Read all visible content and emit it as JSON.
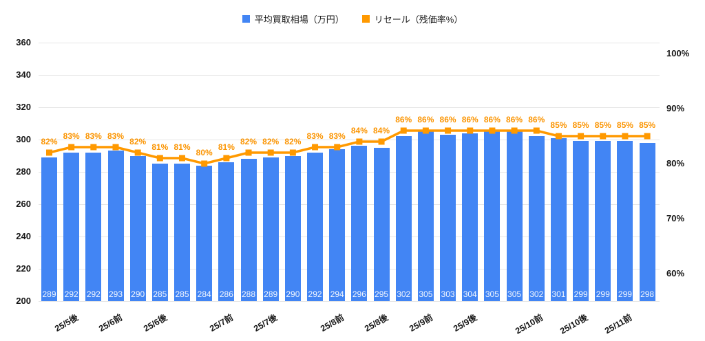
{
  "legend": {
    "items": [
      {
        "label": "平均買取相場（万円）",
        "color": "#4285F4"
      },
      {
        "label": "リセール（残価率%）",
        "color": "#FF9900"
      }
    ]
  },
  "chart_data": {
    "type": "combo-bar-line",
    "title": "",
    "categories_note": "28 half-month periods; only some ticks labeled",
    "x_tick_labels": [
      {
        "index": 1,
        "label": "25/5後"
      },
      {
        "index": 3,
        "label": "25/6前"
      },
      {
        "index": 5,
        "label": "25/6後"
      },
      {
        "index": 8,
        "label": "25/7前"
      },
      {
        "index": 10,
        "label": "25/7後"
      },
      {
        "index": 13,
        "label": "25/8前"
      },
      {
        "index": 15,
        "label": "25/8後"
      },
      {
        "index": 17,
        "label": "25/9前"
      },
      {
        "index": 19,
        "label": "25/9後"
      },
      {
        "index": 22,
        "label": "25/10前"
      },
      {
        "index": 24,
        "label": "25/10後"
      },
      {
        "index": 26,
        "label": "25/11前"
      }
    ],
    "series": [
      {
        "name": "平均買取相場（万円）",
        "type": "bar",
        "axis": "left",
        "color": "#4285F4",
        "value_label_color": "#ffffff",
        "values": [
          289,
          292,
          292,
          293,
          290,
          285,
          285,
          284,
          286,
          288,
          289,
          290,
          292,
          294,
          296,
          295,
          302,
          305,
          303,
          304,
          305,
          305,
          302,
          301,
          299,
          299,
          299,
          298
        ]
      },
      {
        "name": "リセール（残価率%）",
        "type": "line",
        "axis": "right",
        "color": "#FF9900",
        "point_shape": "square",
        "annotation_suffix": "%",
        "values": [
          82,
          83,
          83,
          83,
          82,
          81,
          81,
          80,
          81,
          82,
          82,
          82,
          83,
          83,
          84,
          84,
          86,
          86,
          86,
          86,
          86,
          86,
          86,
          85,
          85,
          85,
          85,
          85
        ]
      }
    ],
    "left_axis": {
      "min": 200,
      "max": 360,
      "tick_step": 20,
      "ticks": [
        360,
        340,
        320,
        300,
        280,
        260,
        240,
        220,
        200
      ]
    },
    "right_axis": {
      "display_min": 55,
      "display_max": 102,
      "ticks": [
        100,
        90,
        80,
        70,
        60
      ],
      "tick_suffix": "%"
    },
    "grid": true,
    "legend_position": "top-center",
    "background": "#ffffff",
    "gridline_color": "#e6e6e6"
  }
}
